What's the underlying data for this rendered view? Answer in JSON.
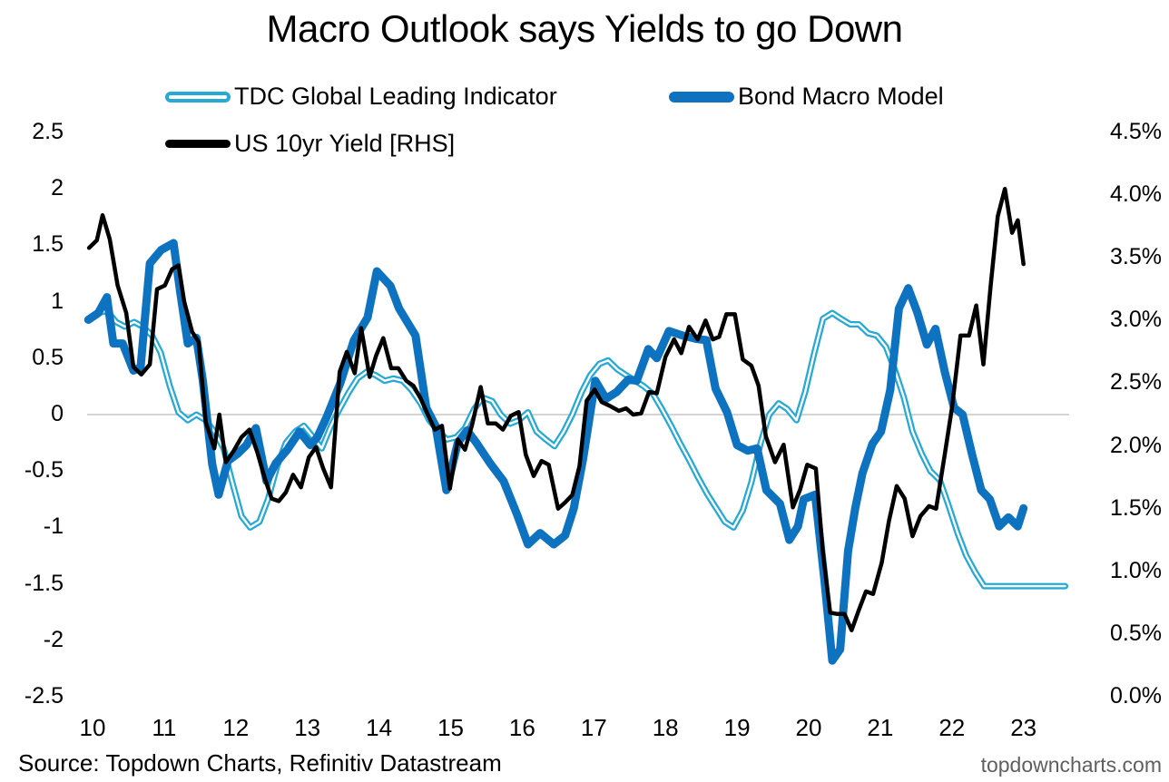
{
  "chart_data": {
    "type": "line",
    "title": "Macro Outlook says Yields to go Down",
    "xlabel": "",
    "ylabel": "",
    "ylabel_right": "",
    "x_tick_labels": [
      "10",
      "11",
      "12",
      "13",
      "14",
      "15",
      "16",
      "17",
      "18",
      "19",
      "20",
      "21",
      "22",
      "23"
    ],
    "y_left_tick_labels": [
      "2.5",
      "2",
      "1.5",
      "1",
      "0.5",
      "0",
      "-0.5",
      "-1",
      "-1.5",
      "-2",
      "-2.5"
    ],
    "y_right_tick_labels": [
      "4.5%",
      "4.0%",
      "3.5%",
      "3.0%",
      "2.5%",
      "2.0%",
      "1.5%",
      "1.0%",
      "0.5%",
      "0.0%"
    ],
    "ylim_left": [
      -2.5,
      2.5
    ],
    "ylim_right": [
      0.0,
      4.5
    ],
    "xlim": [
      2009.95,
      2023.65
    ],
    "grid": false,
    "zero_line": true,
    "legend": {
      "placement": "top",
      "entries": [
        {
          "name": "TDC Global Leading Indicator",
          "style": "double-line",
          "color": "#27a9d6"
        },
        {
          "name": "Bond Macro Model",
          "style": "thick-line",
          "color": "#0d72c0"
        },
        {
          "name": "US 10yr Yield [RHS]",
          "style": "line",
          "color": "#000000"
        }
      ]
    },
    "series": [
      {
        "name": "TDC Global Leading Indicator",
        "axis": "left",
        "color": "#27a9d6",
        "x": [
          2009.95,
          2010.08,
          2010.2,
          2010.33,
          2010.45,
          2010.58,
          2010.7,
          2010.83,
          2010.95,
          2011.08,
          2011.2,
          2011.33,
          2011.45,
          2011.58,
          2011.7,
          2011.83,
          2011.95,
          2012.08,
          2012.2,
          2012.33,
          2012.45,
          2012.58,
          2012.7,
          2012.83,
          2012.95,
          2013.08,
          2013.2,
          2013.33,
          2013.45,
          2013.58,
          2013.7,
          2013.83,
          2013.95,
          2014.08,
          2014.2,
          2014.33,
          2014.45,
          2014.58,
          2014.7,
          2014.83,
          2014.95,
          2015.08,
          2015.2,
          2015.33,
          2015.45,
          2015.58,
          2015.7,
          2015.83,
          2015.95,
          2016.08,
          2016.2,
          2016.33,
          2016.45,
          2016.58,
          2016.7,
          2016.83,
          2016.95,
          2017.08,
          2017.2,
          2017.33,
          2017.45,
          2017.58,
          2017.7,
          2017.83,
          2017.95,
          2018.08,
          2018.2,
          2018.33,
          2018.45,
          2018.58,
          2018.7,
          2018.83,
          2018.95,
          2019.08,
          2019.2,
          2019.33,
          2019.45,
          2019.58,
          2019.7,
          2019.83,
          2019.95,
          2020.08,
          2020.2,
          2020.33,
          2020.45,
          2020.58,
          2020.7,
          2020.83,
          2020.95,
          2021.08,
          2021.2,
          2021.33,
          2021.45,
          2021.58,
          2021.7,
          2021.83,
          2021.95,
          2022.08,
          2022.2,
          2022.33,
          2022.45,
          2022.58,
          2022.7,
          2022.83,
          2022.95,
          2023.08,
          2023.2,
          2023.33,
          2023.45,
          2023.58
        ],
        "values": [
          0.85,
          0.9,
          0.92,
          0.82,
          0.78,
          0.82,
          0.78,
          0.7,
          0.55,
          0.25,
          0.02,
          -0.05,
          0.0,
          -0.05,
          -0.15,
          -0.3,
          -0.6,
          -0.9,
          -1.0,
          -0.95,
          -0.75,
          -0.45,
          -0.25,
          -0.15,
          -0.1,
          -0.2,
          -0.3,
          -0.1,
          0.05,
          0.2,
          0.32,
          0.38,
          0.35,
          0.3,
          0.32,
          0.3,
          0.22,
          0.1,
          -0.05,
          -0.15,
          -0.22,
          -0.2,
          -0.12,
          0.05,
          0.15,
          0.12,
          0.0,
          -0.08,
          -0.05,
          0.02,
          -0.15,
          -0.22,
          -0.28,
          -0.15,
          0.0,
          0.2,
          0.35,
          0.45,
          0.48,
          0.4,
          0.35,
          0.3,
          0.25,
          0.18,
          0.05,
          -0.1,
          -0.25,
          -0.4,
          -0.55,
          -0.7,
          -0.82,
          -0.95,
          -1.0,
          -0.85,
          -0.6,
          -0.25,
          0.0,
          0.1,
          0.05,
          -0.05,
          0.2,
          0.55,
          0.85,
          0.9,
          0.85,
          0.8,
          0.8,
          0.72,
          0.7,
          0.6,
          0.4,
          0.15,
          -0.15,
          -0.35,
          -0.5,
          -0.58,
          -0.8,
          -1.05,
          -1.25,
          -1.4,
          -1.52,
          -1.52,
          -1.52,
          -1.52,
          -1.52,
          -1.52,
          -1.52,
          -1.52,
          -1.52,
          -1.52
        ]
      },
      {
        "name": "Bond Macro Model",
        "axis": "left",
        "color": "#0d72c0",
        "x": [
          2009.94,
          2010.08,
          2010.2,
          2010.29,
          2010.42,
          2010.57,
          2010.67,
          2010.8,
          2010.96,
          2011.13,
          2011.22,
          2011.33,
          2011.45,
          2011.54,
          2011.67,
          2011.76,
          2011.89,
          2012.02,
          2012.15,
          2012.28,
          2012.43,
          2012.56,
          2012.72,
          2012.89,
          2013.04,
          2013.14,
          2013.27,
          2013.46,
          2013.65,
          2013.84,
          2013.97,
          2014.16,
          2014.28,
          2014.51,
          2014.66,
          2014.79,
          2014.94,
          2015.1,
          2015.23,
          2015.36,
          2015.55,
          2015.74,
          2015.93,
          2016.08,
          2016.25,
          2016.44,
          2016.6,
          2016.72,
          2016.85,
          2017.02,
          2017.17,
          2017.32,
          2017.48,
          2017.6,
          2017.76,
          2017.88,
          2018.05,
          2018.24,
          2018.44,
          2018.57,
          2018.7,
          2018.86,
          2019.0,
          2019.15,
          2019.28,
          2019.41,
          2019.6,
          2019.73,
          2019.85,
          2019.93,
          2020.09,
          2020.22,
          2020.33,
          2020.44,
          2020.55,
          2020.65,
          2020.75,
          2020.89,
          2021.01,
          2021.14,
          2021.26,
          2021.39,
          2021.52,
          2021.65,
          2021.77,
          2021.9,
          2022.03,
          2022.15,
          2022.28,
          2022.41,
          2022.53,
          2022.66,
          2022.79,
          2022.92,
          2023.0
        ],
        "values": [
          0.84,
          0.9,
          1.04,
          0.63,
          0.63,
          0.39,
          0.42,
          1.34,
          1.46,
          1.52,
          1.1,
          0.63,
          0.68,
          0.3,
          -0.44,
          -0.71,
          -0.41,
          -0.35,
          -0.27,
          -0.12,
          -0.59,
          -0.43,
          -0.31,
          -0.15,
          -0.27,
          -0.2,
          -0.02,
          0.28,
          0.66,
          0.86,
          1.27,
          1.14,
          0.94,
          0.7,
          0.06,
          -0.1,
          -0.67,
          -0.25,
          -0.14,
          -0.25,
          -0.43,
          -0.59,
          -0.89,
          -1.15,
          -1.05,
          -1.15,
          -1.07,
          -0.83,
          -0.39,
          0.3,
          0.14,
          0.2,
          0.31,
          0.3,
          0.58,
          0.5,
          0.74,
          0.7,
          0.67,
          0.66,
          0.23,
          0.02,
          -0.27,
          -0.32,
          -0.3,
          -0.67,
          -0.79,
          -1.11,
          -0.99,
          -0.75,
          -0.71,
          -1.47,
          -2.18,
          -2.08,
          -1.21,
          -0.83,
          -0.52,
          -0.26,
          -0.15,
          0.22,
          0.94,
          1.12,
          0.9,
          0.62,
          0.76,
          0.38,
          0.06,
          0.0,
          -0.35,
          -0.67,
          -0.75,
          -0.99,
          -0.91,
          -0.99,
          -0.83
        ]
      },
      {
        "name": "US 10yr Yield [RHS]",
        "axis": "right",
        "color": "#000000",
        "x": [
          2009.95,
          2010.06,
          2010.14,
          2010.24,
          2010.35,
          2010.47,
          2010.57,
          2010.68,
          2010.8,
          2010.9,
          2011.01,
          2011.11,
          2011.2,
          2011.28,
          2011.39,
          2011.48,
          2011.58,
          2011.7,
          2011.77,
          2011.86,
          2011.97,
          2012.08,
          2012.19,
          2012.3,
          2012.4,
          2012.5,
          2012.6,
          2012.7,
          2012.8,
          2012.91,
          2013.02,
          2013.12,
          2013.22,
          2013.33,
          2013.45,
          2013.55,
          2013.66,
          2013.75,
          2013.87,
          2013.96,
          2014.06,
          2014.17,
          2014.27,
          2014.38,
          2014.48,
          2014.58,
          2014.68,
          2014.78,
          2014.88,
          2014.99,
          2015.1,
          2015.2,
          2015.3,
          2015.42,
          2015.52,
          2015.63,
          2015.73,
          2015.84,
          2015.95,
          2016.05,
          2016.16,
          2016.27,
          2016.37,
          2016.5,
          2016.6,
          2016.7,
          2016.8,
          2016.9,
          2017.01,
          2017.11,
          2017.22,
          2017.35,
          2017.45,
          2017.55,
          2017.66,
          2017.77,
          2017.88,
          2018.0,
          2018.12,
          2018.22,
          2018.33,
          2018.45,
          2018.56,
          2018.66,
          2018.75,
          2018.85,
          2018.97,
          2019.08,
          2019.2,
          2019.3,
          2019.4,
          2019.53,
          2019.65,
          2019.78,
          2019.88,
          2019.98,
          2020.1,
          2020.2,
          2020.3,
          2020.4,
          2020.5,
          2020.6,
          2020.7,
          2020.8,
          2020.9,
          2021.02,
          2021.12,
          2021.23,
          2021.34,
          2021.45,
          2021.56,
          2021.68,
          2021.78,
          2021.9,
          2022.0,
          2022.12,
          2022.24,
          2022.34,
          2022.44,
          2022.54,
          2022.64,
          2022.74,
          2022.84,
          2022.92,
          2023.0
        ],
        "values": [
          3.58,
          3.64,
          3.84,
          3.65,
          3.28,
          3.06,
          2.63,
          2.57,
          2.65,
          3.25,
          3.28,
          3.41,
          3.44,
          3.15,
          2.91,
          2.83,
          2.19,
          1.98,
          2.25,
          1.87,
          1.96,
          2.07,
          2.13,
          1.95,
          1.75,
          1.58,
          1.56,
          1.63,
          1.77,
          1.67,
          1.91,
          1.99,
          1.82,
          1.67,
          2.59,
          2.75,
          2.58,
          2.94,
          2.55,
          2.72,
          2.86,
          2.62,
          2.62,
          2.52,
          2.48,
          2.38,
          2.25,
          2.13,
          2.16,
          1.66,
          2.05,
          1.97,
          2.17,
          2.47,
          2.18,
          2.18,
          2.13,
          2.24,
          2.27,
          1.93,
          1.76,
          1.88,
          1.85,
          1.5,
          1.55,
          1.61,
          1.84,
          2.36,
          2.45,
          2.35,
          2.32,
          2.28,
          2.3,
          2.25,
          2.26,
          2.43,
          2.42,
          2.71,
          2.85,
          2.74,
          2.95,
          2.85,
          3.0,
          2.85,
          2.87,
          3.05,
          3.05,
          2.69,
          2.64,
          2.48,
          2.08,
          1.87,
          2.01,
          1.51,
          1.65,
          1.85,
          1.82,
          1.14,
          0.67,
          0.66,
          0.66,
          0.53,
          0.69,
          0.84,
          0.82,
          1.07,
          1.4,
          1.68,
          1.58,
          1.28,
          1.44,
          1.52,
          1.5,
          1.93,
          2.3,
          2.88,
          2.88,
          3.12,
          2.65,
          3.27,
          3.83,
          4.05,
          3.7,
          3.8,
          3.45
        ]
      }
    ],
    "source": "Source: Topdown Charts, Refinitiv Datastream",
    "watermark": "topdowncharts.com"
  }
}
